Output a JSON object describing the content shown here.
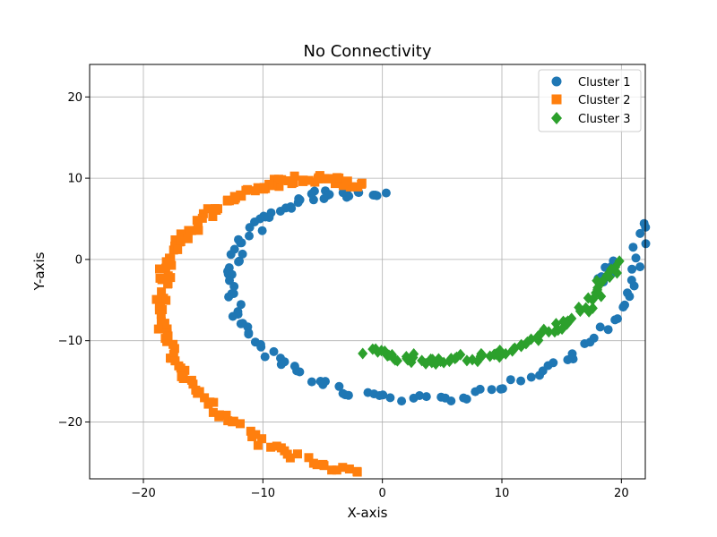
{
  "chart_data": {
    "type": "scatter",
    "title": "No Connectivity",
    "xlabel": "X-axis",
    "ylabel": "Y-axis",
    "xlim": [
      -24.5,
      22
    ],
    "ylim": [
      -27,
      24
    ],
    "xticks": [
      -20,
      -10,
      0,
      10,
      20
    ],
    "yticks": [
      -20,
      -10,
      0,
      10,
      20
    ],
    "grid": true,
    "legend_position": "top-right",
    "series": [
      {
        "name": "Cluster 1",
        "marker": "circle",
        "color": "#1f77b4",
        "spirals": [
          {
            "r0": 7.8,
            "r1": 22.2,
            "t0": 1.57,
            "t1": 6.48,
            "n": 130
          },
          {
            "r0": 19.5,
            "r1": 18.3,
            "t0": 6.28,
            "t1": 6.1,
            "n": 12
          }
        ]
      },
      {
        "name": "Cluster 2",
        "marker": "square",
        "color": "#ff7f0e",
        "spirals": [
          {
            "r0": 9.5,
            "r1": 26.5,
            "t0": 1.75,
            "t1": 4.65,
            "n": 150
          }
        ]
      },
      {
        "name": "Cluster 3",
        "marker": "diamond",
        "color": "#2ca02c",
        "spirals": [
          {
            "r0": 11.0,
            "r1": 19.5,
            "t0": 4.62,
            "t1": 6.26,
            "n": 90
          }
        ]
      }
    ]
  }
}
